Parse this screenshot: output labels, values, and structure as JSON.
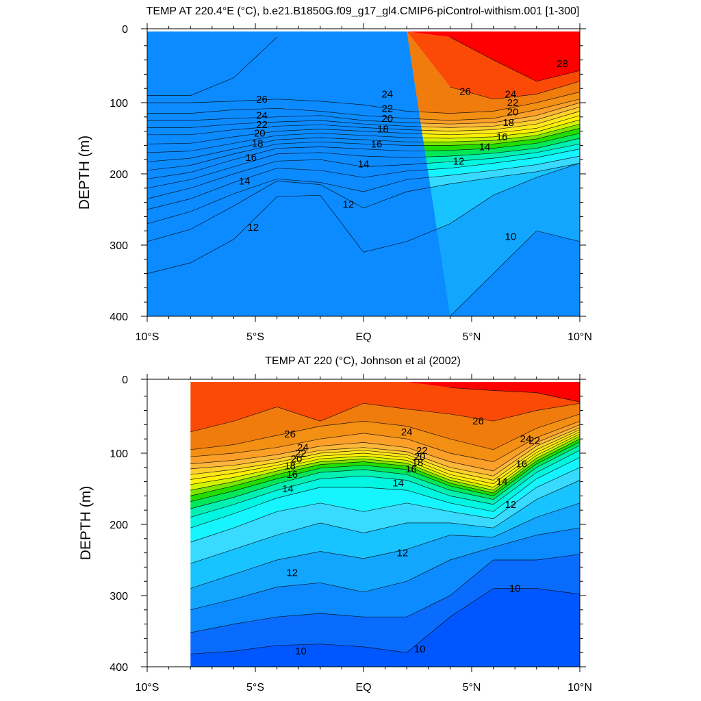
{
  "chart_data": [
    {
      "type": "contour",
      "title": "TEMP AT 220.4°E (°C), b.e21.B1850G.f09_g17_gl4.CMIP6-piControl-withism.001 [1-300]",
      "ylabel": "DEPTH (m)",
      "xlabel": "",
      "xlim": [
        -10,
        10
      ],
      "ylim": [
        400,
        0
      ],
      "x_ticks": [
        {
          "value": -10,
          "label": "10°S"
        },
        {
          "value": -5,
          "label": "5°S"
        },
        {
          "value": 0,
          "label": "EQ"
        },
        {
          "value": 5,
          "label": "5°N"
        },
        {
          "value": 10,
          "label": "10°N"
        }
      ],
      "y_ticks": [
        {
          "value": 0,
          "label": "0"
        },
        {
          "value": 100,
          "label": "100"
        },
        {
          "value": 200,
          "label": "200"
        },
        {
          "value": 300,
          "label": "300"
        },
        {
          "value": 400,
          "label": "400"
        }
      ],
      "data_x_start": -10,
      "contour_interval": 1,
      "isotherm_x": [
        -10,
        -8,
        -6,
        -4,
        -2,
        0,
        2,
        4,
        6,
        8,
        10
      ],
      "isotherms": [
        {
          "t": 28,
          "depth": [
            null,
            null,
            null,
            null,
            null,
            null,
            null,
            8,
            40,
            70,
            55
          ]
        },
        {
          "t": 27,
          "depth": [
            90,
            90,
            65,
            8,
            null,
            null,
            null,
            78,
            95,
            88,
            70
          ]
        },
        {
          "t": 26,
          "depth": [
            100,
            100,
            98,
            95,
            98,
            103,
            112,
            115,
            112,
            100,
            85
          ]
        },
        {
          "t": 25,
          "depth": [
            115,
            115,
            110,
            108,
            112,
            118,
            122,
            125,
            122,
            110,
            95
          ]
        },
        {
          "t": 24,
          "depth": [
            125,
            125,
            122,
            120,
            118,
            125,
            128,
            130,
            128,
            118,
            100
          ]
        },
        {
          "t": 23,
          "depth": [
            135,
            135,
            130,
            127,
            125,
            130,
            133,
            135,
            133,
            124,
            106
          ]
        },
        {
          "t": 22,
          "depth": [
            145,
            145,
            138,
            133,
            131,
            135,
            138,
            140,
            138,
            130,
            112
          ]
        },
        {
          "t": 21,
          "depth": [
            158,
            157,
            148,
            140,
            137,
            140,
            143,
            145,
            143,
            136,
            118
          ]
        },
        {
          "t": 20,
          "depth": [
            170,
            168,
            157,
            146,
            143,
            146,
            149,
            150,
            148,
            141,
            124
          ]
        },
        {
          "t": 19,
          "depth": [
            183,
            178,
            165,
            152,
            149,
            152,
            155,
            155,
            153,
            146,
            130
          ]
        },
        {
          "t": 18,
          "depth": [
            195,
            188,
            172,
            158,
            155,
            158,
            160,
            160,
            158,
            151,
            136
          ]
        },
        {
          "t": 17,
          "depth": [
            207,
            198,
            180,
            164,
            162,
            165,
            168,
            167,
            164,
            157,
            143
          ]
        },
        {
          "t": 16,
          "depth": [
            220,
            208,
            190,
            172,
            170,
            175,
            177,
            175,
            171,
            164,
            150
          ]
        },
        {
          "t": 15,
          "depth": [
            235,
            220,
            200,
            182,
            180,
            190,
            187,
            183,
            178,
            170,
            158
          ]
        },
        {
          "t": 14,
          "depth": [
            250,
            235,
            212,
            192,
            195,
            205,
            196,
            192,
            185,
            177,
            165
          ]
        },
        {
          "t": 13,
          "depth": [
            270,
            253,
            228,
            207,
            212,
            225,
            208,
            202,
            195,
            187,
            175
          ]
        },
        {
          "t": 12,
          "depth": [
            295,
            278,
            245,
            210,
            215,
            248,
            225,
            214,
            205,
            197,
            185
          ]
        },
        {
          "t": 11,
          "depth": [
            340,
            325,
            292,
            232,
            230,
            310,
            295,
            270,
            230,
            205,
            185
          ]
        },
        {
          "t": 10,
          "depth": [
            null,
            null,
            null,
            null,
            null,
            null,
            null,
            400,
            340,
            280,
            295
          ]
        }
      ],
      "contour_labels": [
        {
          "text": "28",
          "x": 9.2,
          "depth": 45
        },
        {
          "text": "26",
          "x": -4.7,
          "depth": 95
        },
        {
          "text": "24",
          "x": 1.1,
          "depth": 88
        },
        {
          "text": "26",
          "x": 4.7,
          "depth": 84
        },
        {
          "text": "24",
          "x": -4.7,
          "depth": 118
        },
        {
          "text": "22",
          "x": -4.7,
          "depth": 131
        },
        {
          "text": "20",
          "x": -4.8,
          "depth": 143
        },
        {
          "text": "18",
          "x": -4.9,
          "depth": 157
        },
        {
          "text": "16",
          "x": -5.2,
          "depth": 177
        },
        {
          "text": "14",
          "x": -5.5,
          "depth": 210
        },
        {
          "text": "12",
          "x": -5.1,
          "depth": 275
        },
        {
          "text": "22",
          "x": 1.1,
          "depth": 108
        },
        {
          "text": "20",
          "x": 1.1,
          "depth": 122
        },
        {
          "text": "18",
          "x": 0.9,
          "depth": 137
        },
        {
          "text": "16",
          "x": 0.6,
          "depth": 158
        },
        {
          "text": "14",
          "x": 0.0,
          "depth": 186
        },
        {
          "text": "12",
          "x": -0.7,
          "depth": 243
        },
        {
          "text": "12",
          "x": 4.4,
          "depth": 182
        },
        {
          "text": "14",
          "x": 5.6,
          "depth": 162
        },
        {
          "text": "16",
          "x": 6.4,
          "depth": 148
        },
        {
          "text": "18",
          "x": 6.7,
          "depth": 128
        },
        {
          "text": "20",
          "x": 6.9,
          "depth": 113
        },
        {
          "text": "22",
          "x": 6.9,
          "depth": 100
        },
        {
          "text": "24",
          "x": 6.8,
          "depth": 88
        },
        {
          "text": "10",
          "x": 6.8,
          "depth": 288
        }
      ]
    },
    {
      "type": "contour",
      "title": "TEMP AT 220 (°C), Johnson et al (2002)",
      "ylabel": "DEPTH (m)",
      "xlabel": "",
      "xlim": [
        -10,
        10
      ],
      "ylim": [
        400,
        0
      ],
      "x_ticks": [
        {
          "value": -10,
          "label": "10°S"
        },
        {
          "value": -5,
          "label": "5°S"
        },
        {
          "value": 0,
          "label": "EQ"
        },
        {
          "value": 5,
          "label": "5°N"
        },
        {
          "value": 10,
          "label": "10°N"
        }
      ],
      "y_ticks": [
        {
          "value": 0,
          "label": "0"
        },
        {
          "value": 100,
          "label": "100"
        },
        {
          "value": 200,
          "label": "200"
        },
        {
          "value": 300,
          "label": "300"
        },
        {
          "value": 400,
          "label": "400"
        }
      ],
      "data_x_start": -8,
      "contour_interval": 1,
      "isotherm_x": [
        -8,
        -6,
        -4,
        -2,
        0,
        2,
        4,
        6,
        8,
        10
      ],
      "isotherms": [
        {
          "t": 28,
          "depth": [
            null,
            null,
            null,
            null,
            null,
            null,
            8,
            12,
            15,
            28
          ]
        },
        {
          "t": 27,
          "depth": [
            70,
            55,
            35,
            55,
            30,
            38,
            45,
            55,
            40,
            30
          ]
        },
        {
          "t": 26,
          "depth": [
            95,
            88,
            75,
            62,
            55,
            62,
            80,
            95,
            65,
            45
          ]
        },
        {
          "t": 25,
          "depth": [
            105,
            100,
            92,
            80,
            72,
            80,
            100,
            112,
            78,
            55
          ]
        },
        {
          "t": 24,
          "depth": [
            115,
            110,
            102,
            90,
            85,
            92,
            112,
            125,
            85,
            60
          ]
        },
        {
          "t": 23,
          "depth": [
            122,
            117,
            108,
            96,
            92,
            98,
            120,
            132,
            90,
            64
          ]
        },
        {
          "t": 22,
          "depth": [
            130,
            123,
            113,
            100,
            96,
            102,
            125,
            138,
            95,
            67
          ]
        },
        {
          "t": 21,
          "depth": [
            137,
            128,
            117,
            104,
            100,
            106,
            130,
            143,
            99,
            70
          ]
        },
        {
          "t": 20,
          "depth": [
            144,
            134,
            121,
            108,
            104,
            110,
            134,
            148,
            103,
            73
          ]
        },
        {
          "t": 19,
          "depth": [
            152,
            140,
            125,
            112,
            108,
            114,
            138,
            152,
            107,
            76
          ]
        },
        {
          "t": 18,
          "depth": [
            160,
            146,
            130,
            116,
            112,
            118,
            142,
            156,
            111,
            80
          ]
        },
        {
          "t": 17,
          "depth": [
            168,
            153,
            136,
            121,
            117,
            123,
            146,
            160,
            115,
            84
          ]
        },
        {
          "t": 16,
          "depth": [
            178,
            162,
            143,
            127,
            123,
            130,
            152,
            165,
            120,
            89
          ]
        },
        {
          "t": 15,
          "depth": [
            190,
            172,
            152,
            136,
            132,
            138,
            160,
            172,
            127,
            96
          ]
        },
        {
          "t": 14,
          "depth": [
            205,
            185,
            163,
            148,
            148,
            152,
            170,
            182,
            136,
            106
          ]
        },
        {
          "t": 13,
          "depth": [
            225,
            205,
            182,
            170,
            182,
            170,
            182,
            192,
            148,
            120
          ]
        },
        {
          "t": 12,
          "depth": [
            255,
            235,
            215,
            198,
            212,
            198,
            198,
            205,
            165,
            138
          ]
        },
        {
          "t": 11,
          "depth": [
            290,
            270,
            250,
            238,
            248,
            235,
            215,
            218,
            190,
            170
          ]
        },
        {
          "t": 10,
          "depth": [
            320,
            305,
            288,
            282,
            295,
            280,
            250,
            232,
            215,
            205
          ]
        },
        {
          "t": 9,
          "depth": [
            352,
            340,
            330,
            325,
            330,
            330,
            300,
            250,
            250,
            242
          ]
        },
        {
          "t": 8,
          "depth": [
            382,
            378,
            370,
            368,
            372,
            380,
            330,
            290,
            290,
            298
          ]
        }
      ],
      "contour_labels": [
        {
          "text": "26",
          "x": 5.3,
          "depth": 55
        },
        {
          "text": "24",
          "x": 2.0,
          "depth": 70
        },
        {
          "text": "26",
          "x": -3.4,
          "depth": 73
        },
        {
          "text": "24",
          "x": -2.8,
          "depth": 92
        },
        {
          "text": "22",
          "x": -2.9,
          "depth": 100
        },
        {
          "text": "20",
          "x": -3.1,
          "depth": 108
        },
        {
          "text": "18",
          "x": -3.4,
          "depth": 118
        },
        {
          "text": "16",
          "x": -3.3,
          "depth": 130
        },
        {
          "text": "14",
          "x": -3.5,
          "depth": 150
        },
        {
          "text": "22",
          "x": 2.7,
          "depth": 96
        },
        {
          "text": "20",
          "x": 2.6,
          "depth": 105
        },
        {
          "text": "18",
          "x": 2.5,
          "depth": 113
        },
        {
          "text": "16",
          "x": 2.2,
          "depth": 122
        },
        {
          "text": "14",
          "x": 1.6,
          "depth": 142
        },
        {
          "text": "12",
          "x": 1.8,
          "depth": 240
        },
        {
          "text": "12",
          "x": -3.3,
          "depth": 268
        },
        {
          "text": "24",
          "x": 7.5,
          "depth": 80
        },
        {
          "text": "22",
          "x": 7.9,
          "depth": 82
        },
        {
          "text": "16",
          "x": 7.3,
          "depth": 115
        },
        {
          "text": "14",
          "x": 6.4,
          "depth": 140
        },
        {
          "text": "12",
          "x": 6.8,
          "depth": 172
        },
        {
          "text": "10",
          "x": 7.0,
          "depth": 290
        },
        {
          "text": "10",
          "x": -2.9,
          "depth": 378
        },
        {
          "text": "10",
          "x": 2.6,
          "depth": 375
        }
      ]
    }
  ]
}
